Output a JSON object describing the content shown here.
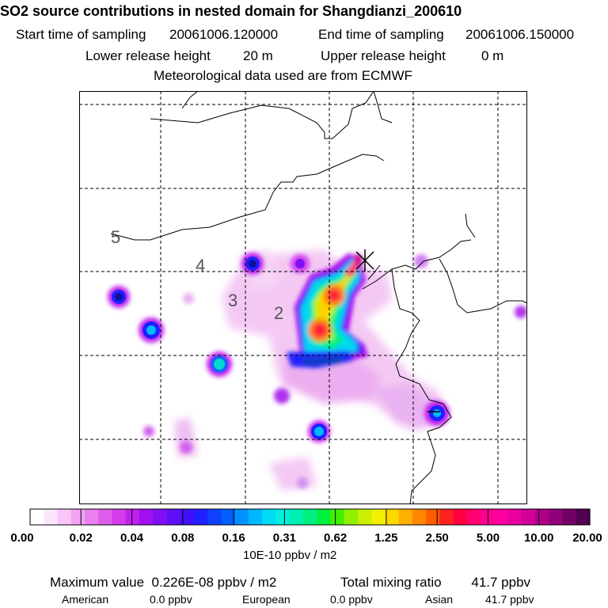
{
  "header": {
    "title": "SO2 source contributions in nested domain for Shangdianzi_200610",
    "start_label": "Start time of sampling",
    "start_value": "20061006.120000",
    "end_label": "End time of sampling",
    "end_value": "20061006.150000",
    "lower_label": "Lower release height",
    "lower_value": "20 m",
    "upper_label": "Upper release height",
    "upper_value": "0 m",
    "met": "Meteorological data used are from ECMWF"
  },
  "map": {
    "contour_labels": [
      "5",
      "4",
      "3",
      "2"
    ],
    "receptor_marker": "×"
  },
  "chart_data": {
    "type": "heatmap",
    "colorbar": {
      "tick_labels": [
        "0.00",
        "0.02",
        "0.04",
        "0.08",
        "0.16",
        "0.31",
        "0.62",
        "1.25",
        "2.50",
        "5.00",
        "10.00",
        "20.00"
      ],
      "colors": [
        "#ffffff",
        "#fde6fd",
        "#f8c6f8",
        "#f2a4f2",
        "#ea80ee",
        "#e05cea",
        "#d43cea",
        "#c020ee",
        "#a010f0",
        "#8010f4",
        "#6010f8",
        "#4010fc",
        "#2020ff",
        "#1040ff",
        "#0060ff",
        "#0090ff",
        "#00b8ff",
        "#00dcf4",
        "#00f0dc",
        "#00f0b4",
        "#00f080",
        "#00f040",
        "#40f000",
        "#90f000",
        "#c8f000",
        "#f0f000",
        "#ffd800",
        "#ffb000",
        "#ff8800",
        "#ff5c00",
        "#ff2020",
        "#ff0040",
        "#ff0070",
        "#ff0090",
        "#ff00a0",
        "#e800a0",
        "#d00098",
        "#b00088",
        "#900078",
        "#700064",
        "#500050"
      ],
      "unit": "10E-10 ppbv / m2"
    },
    "plumes": [
      {
        "lon": 117.1,
        "lat": 40.6,
        "level": 20.0
      },
      {
        "lon": 116.8,
        "lat": 40.3,
        "level": 5.0
      },
      {
        "lon": 116.6,
        "lat": 39.9,
        "level": 2.5
      },
      {
        "lon": 116.4,
        "lat": 39.4,
        "level": 5.0
      },
      {
        "lon": 115.9,
        "lat": 39.6,
        "level": 0.62
      },
      {
        "lon": 116.5,
        "lat": 38.9,
        "level": 0.16
      },
      {
        "lon": 113.6,
        "lat": 40.7,
        "level": 0.08
      },
      {
        "lon": 114.4,
        "lat": 40.7,
        "level": 0.04
      },
      {
        "lon": 111.5,
        "lat": 40.1,
        "level": 0.08
      },
      {
        "lon": 112.0,
        "lat": 39.3,
        "level": 0.16
      },
      {
        "lon": 113.1,
        "lat": 38.6,
        "level": 0.16
      },
      {
        "lon": 116.2,
        "lat": 35.7,
        "level": 0.08
      },
      {
        "lon": 119.2,
        "lat": 36.7,
        "level": 0.16
      },
      {
        "lon": 118.5,
        "lat": 36.9,
        "level": 0.04
      },
      {
        "lon": 118.7,
        "lat": 40.7,
        "level": 0.02
      },
      {
        "lon": 121.7,
        "lat": 39.8,
        "level": 0.02
      }
    ],
    "max_label": "Maximum value",
    "max_value": "0.226E-08 ppbv / m2",
    "total_label": "Total mixing ratio",
    "total_value": "41.7 ppbv",
    "region_labels": [
      "American",
      "European",
      "Asian"
    ],
    "region_values": [
      "0.0 ppbv",
      "0.0 ppbv",
      "41.7 ppbv"
    ]
  }
}
